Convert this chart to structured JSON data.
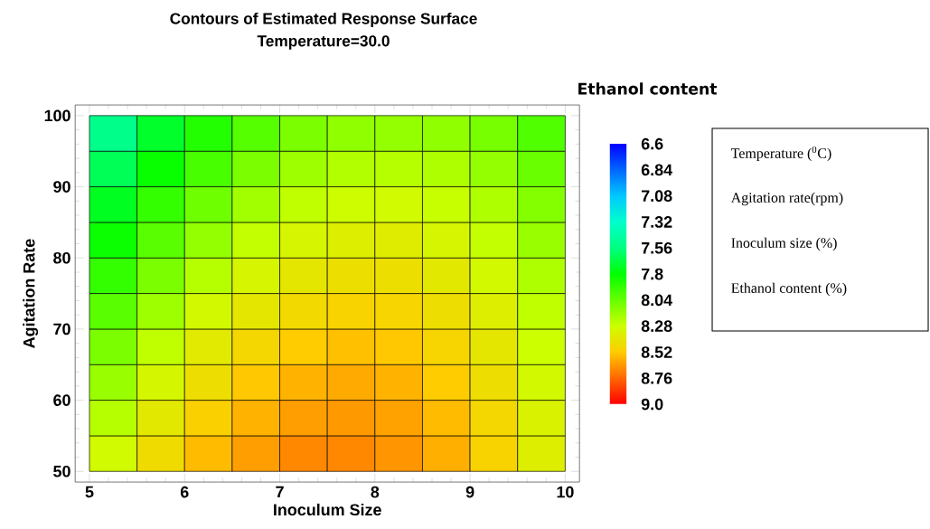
{
  "chart_data": {
    "type": "heatmap",
    "title": "Contours of Estimated Response Surface",
    "subtitle": "Temperature=30.0",
    "xlabel": "Inoculum Size",
    "ylabel": "Agitation Rate",
    "clabel": "Ethanol content",
    "x": [
      5.25,
      5.75,
      6.25,
      6.75,
      7.25,
      7.75,
      8.25,
      8.75,
      9.25,
      9.75
    ],
    "y": [
      97.5,
      92.5,
      87.5,
      82.5,
      77.5,
      72.5,
      67.5,
      62.5,
      57.5,
      52.5
    ],
    "cells": [
      [
        7.53,
        7.72,
        7.88,
        8.0,
        8.09,
        8.14,
        8.15,
        8.14,
        8.08,
        7.99
      ],
      [
        7.64,
        7.82,
        7.97,
        8.09,
        8.17,
        8.22,
        8.23,
        8.21,
        8.15,
        8.05
      ],
      [
        7.74,
        7.92,
        8.06,
        8.18,
        8.25,
        8.29,
        8.3,
        8.27,
        8.21,
        8.11
      ],
      [
        7.83,
        8.01,
        8.15,
        8.26,
        8.33,
        8.36,
        8.37,
        8.33,
        8.26,
        8.16
      ],
      [
        7.92,
        8.09,
        8.23,
        8.33,
        8.4,
        8.43,
        8.43,
        8.39,
        8.31,
        8.21
      ],
      [
        8.01,
        8.17,
        8.31,
        8.4,
        8.46,
        8.49,
        8.48,
        8.44,
        8.36,
        8.25
      ],
      [
        8.09,
        8.25,
        8.38,
        8.47,
        8.52,
        8.55,
        8.53,
        8.48,
        8.4,
        8.28
      ],
      [
        8.16,
        8.32,
        8.44,
        8.53,
        8.58,
        8.6,
        8.58,
        8.52,
        8.44,
        8.31
      ],
      [
        8.23,
        8.39,
        8.5,
        8.58,
        8.63,
        8.64,
        8.62,
        8.56,
        8.47,
        8.34
      ],
      [
        8.3,
        8.45,
        8.56,
        8.63,
        8.68,
        8.68,
        8.65,
        8.59,
        8.49,
        8.36
      ]
    ],
    "clim": [
      6.6,
      9.0
    ],
    "cticks": [
      6.6,
      6.84,
      7.08,
      7.32,
      7.56,
      {
        "value": 7.8,
        "label": "7.8"
      },
      8.04,
      8.28,
      8.52,
      8.76,
      {
        "value": 9.0,
        "label": "9.0"
      }
    ],
    "colors": [
      "#0000ff",
      "#0066ff",
      "#00c8ff",
      "#00ffcc",
      "#00ff80",
      "#00ff00",
      "#66ff00",
      "#ccff00",
      "#ffcc00",
      "#ff6600",
      "#ff0000"
    ],
    "xlim": [
      4.85,
      10.15
    ],
    "ylim": [
      48.5,
      101.5
    ],
    "xticks": [
      5,
      6,
      7,
      8,
      9,
      10
    ],
    "yticks": [
      50,
      60,
      70,
      80,
      90,
      100
    ],
    "annotations": [
      "Temperature ($^{0}$C)",
      "Agitation rate(rpm)",
      "Inoculum size (%)",
      "Ethanol content (%)"
    ]
  }
}
